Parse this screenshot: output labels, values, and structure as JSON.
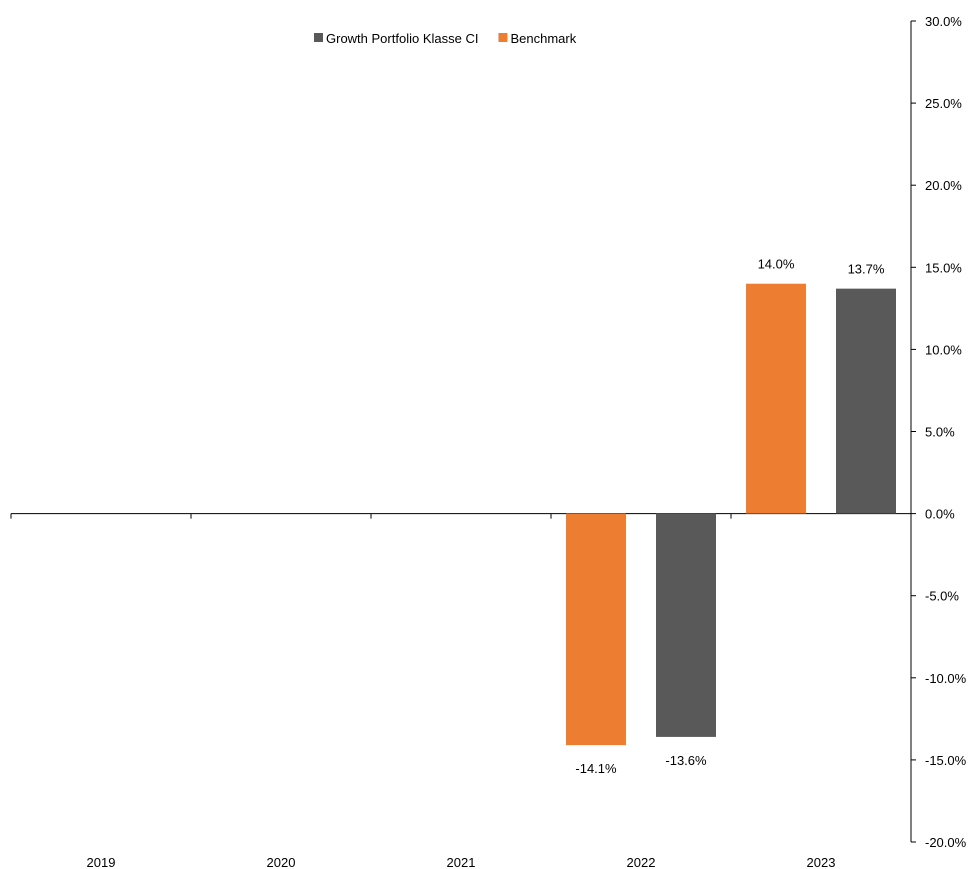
{
  "chart_data": {
    "type": "bar",
    "categories": [
      "2019",
      "2020",
      "2021",
      "2022",
      "2023"
    ],
    "series": [
      {
        "name": "Benchmark",
        "color": "#ED7D31",
        "values": [
          null,
          null,
          null,
          -14.1,
          14.0
        ],
        "labels": [
          "",
          "",
          "",
          "-14.1%",
          "14.0%"
        ]
      },
      {
        "name": "Growth Portfolio Klasse CI",
        "color": "#595959",
        "values": [
          null,
          null,
          null,
          -13.6,
          13.7
        ],
        "labels": [
          "",
          "",
          "",
          "-13.6%",
          "13.7%"
        ]
      }
    ],
    "legend_order": [
      1,
      0
    ],
    "legend_position": "top-center",
    "ylim": [
      -20,
      30
    ],
    "y_ticks": [
      30,
      25,
      20,
      15,
      10,
      5,
      0,
      -5,
      -10,
      -15,
      -20
    ],
    "y_tick_labels": [
      "30.0%",
      "25.0%",
      "20.0%",
      "15.0%",
      "10.0%",
      "5.0%",
      "0.0%",
      "-5.0%",
      "-10.0%",
      "-15.0%",
      "-20.0%"
    ],
    "y_axis_side": "right",
    "grid": false,
    "title": "",
    "xlabel": "",
    "ylabel": ""
  }
}
